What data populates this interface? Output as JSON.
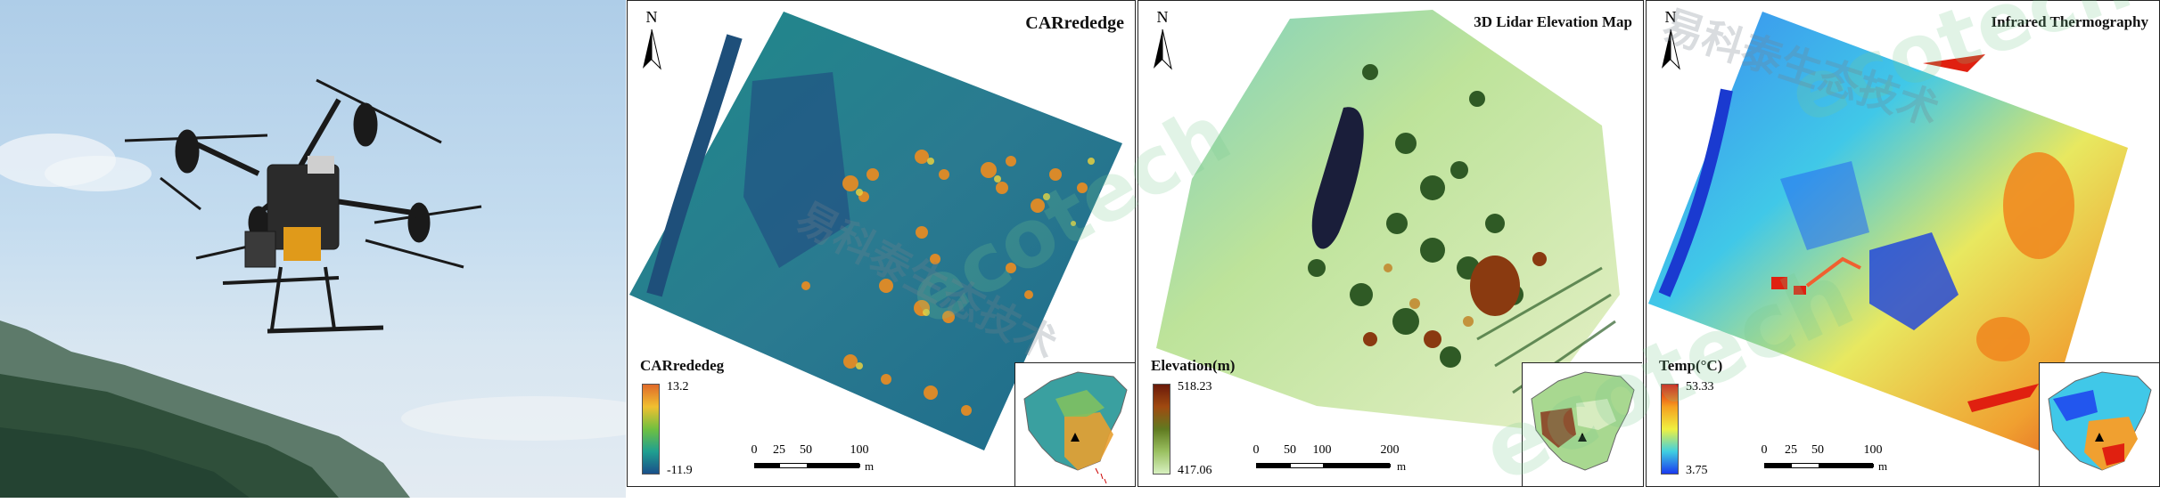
{
  "photo": {
    "subject": "drone-photo"
  },
  "maps": [
    {
      "title": "CARrededge",
      "north_label": "N",
      "legend": {
        "title": "CARrededeg",
        "max": "13.2",
        "min": "-11.9",
        "colors": [
          "#e06a2a",
          "#f0c030",
          "#70c040",
          "#1fa090",
          "#1a4f8a"
        ]
      },
      "scale": {
        "ticks": [
          "0",
          "25",
          "50",
          "100"
        ],
        "unit": "m"
      }
    },
    {
      "title": "3D Lidar Elevation Map",
      "north_label": "N",
      "legend": {
        "title": "Elevation(m)",
        "max": "518.23",
        "min": "417.06",
        "colors": [
          "#6b1a0a",
          "#a04a10",
          "#607a20",
          "#9ac060",
          "#d7f0c0"
        ]
      },
      "scale": {
        "ticks": [
          "0",
          "50",
          "100",
          "200"
        ],
        "unit": "m"
      }
    },
    {
      "title": "Infrared Thermography",
      "north_label": "N",
      "legend": {
        "title": "Temp(°C)",
        "max": "53.33",
        "min": "3.75",
        "colors": [
          "#e01010",
          "#f5a020",
          "#f0f040",
          "#40d0e0",
          "#1a3aef"
        ]
      },
      "scale": {
        "ticks": [
          "0",
          "25",
          "50",
          "100"
        ],
        "unit": "m"
      }
    }
  ],
  "watermark": {
    "latin": "ecotech",
    "chinese": "易科泰生态技术"
  }
}
